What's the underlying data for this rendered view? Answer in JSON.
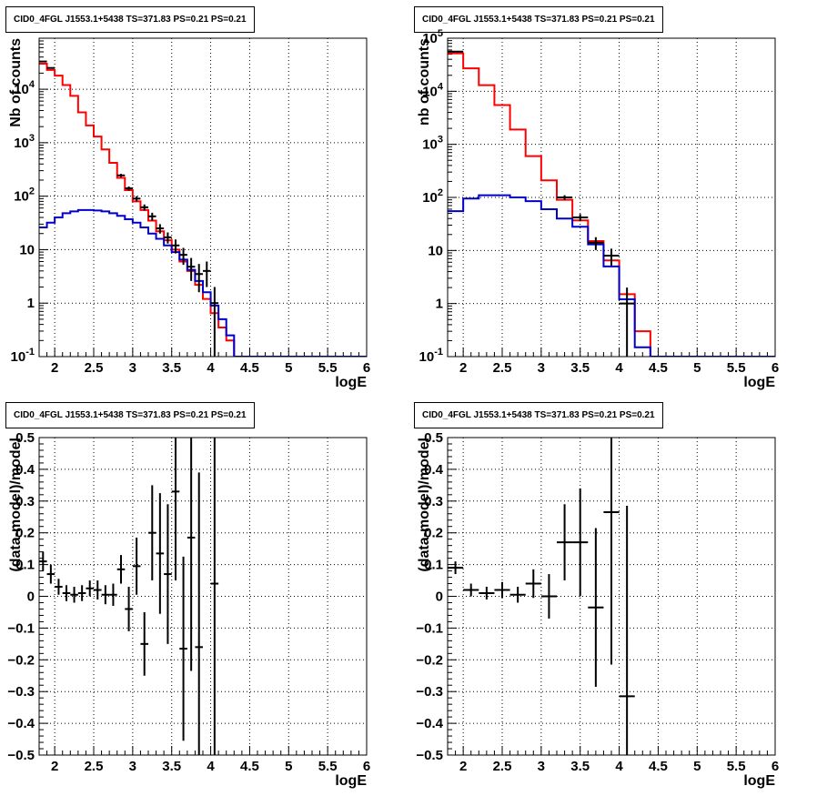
{
  "panels": [
    {
      "title": "CID0_4FGL J1553.1+5438 TS=371.83 PS=0.21 PS=0.21",
      "xlabel": "logE",
      "ylabel": "Nb of counts",
      "yscale": "log",
      "xlim": [
        1.8,
        6.0
      ],
      "ylim": [
        0.1,
        90000
      ],
      "xticks": [
        "2",
        "2.5",
        "3",
        "3.5",
        "4",
        "4.5",
        "5",
        "5.5",
        "6"
      ],
      "yticks": [
        {
          "v": 0.1,
          "label": "10^-1"
        },
        {
          "v": 1,
          "label": "1"
        },
        {
          "v": 10,
          "label": "10"
        },
        {
          "v": 100,
          "label": "10^2"
        },
        {
          "v": 1000,
          "label": "10^3"
        },
        {
          "v": 10000,
          "label": "10^4"
        }
      ]
    },
    {
      "title": "CID0_4FGL J1553.1+5438 TS=371.83 PS=0.21 PS=0.21",
      "xlabel": "logE",
      "ylabel": "nb of counts",
      "yscale": "log",
      "xlim": [
        1.8,
        6.0
      ],
      "ylim": [
        0.1,
        100000
      ],
      "xticks": [
        "2",
        "2.5",
        "3",
        "3.5",
        "4",
        "4.5",
        "5",
        "5.5",
        "6"
      ],
      "yticks": [
        {
          "v": 0.1,
          "label": "10^-1"
        },
        {
          "v": 1,
          "label": "1"
        },
        {
          "v": 10,
          "label": "10"
        },
        {
          "v": 100,
          "label": "10^2"
        },
        {
          "v": 1000,
          "label": "10^3"
        },
        {
          "v": 10000,
          "label": "10^4"
        },
        {
          "v": 100000,
          "label": "10^5"
        }
      ]
    },
    {
      "title": "CID0_4FGL J1553.1+5438 TS=371.83 PS=0.21 PS=0.21",
      "xlabel": "logE",
      "ylabel": "(data-model)/model",
      "yscale": "linear",
      "xlim": [
        1.8,
        6.0
      ],
      "ylim": [
        -0.5,
        0.5
      ],
      "xticks": [
        "2",
        "2.5",
        "3",
        "3.5",
        "4",
        "4.5",
        "5",
        "5.5",
        "6"
      ],
      "yticks": [
        {
          "v": -0.5,
          "label": "−0.5"
        },
        {
          "v": -0.4,
          "label": "−0.4"
        },
        {
          "v": -0.3,
          "label": "−0.3"
        },
        {
          "v": -0.2,
          "label": "−0.2"
        },
        {
          "v": -0.1,
          "label": "−0.1"
        },
        {
          "v": 0,
          "label": "0"
        },
        {
          "v": 0.1,
          "label": "0.1"
        },
        {
          "v": 0.2,
          "label": "0.2"
        },
        {
          "v": 0.3,
          "label": "0.3"
        },
        {
          "v": 0.4,
          "label": "0.4"
        },
        {
          "v": 0.5,
          "label": "0.5"
        }
      ]
    },
    {
      "title": "CID0_4FGL J1553.1+5438 TS=371.83 PS=0.21 PS=0.21",
      "xlabel": "logE",
      "ylabel": "(data-model)/model",
      "yscale": "linear",
      "xlim": [
        1.8,
        6.0
      ],
      "ylim": [
        -0.5,
        0.5
      ],
      "xticks": [
        "2",
        "2.5",
        "3",
        "3.5",
        "4",
        "4.5",
        "5",
        "5.5",
        "6"
      ],
      "yticks": [
        {
          "v": -0.5,
          "label": "−0.5"
        },
        {
          "v": -0.4,
          "label": "−0.4"
        },
        {
          "v": -0.3,
          "label": "−0.3"
        },
        {
          "v": -0.2,
          "label": "−0.2"
        },
        {
          "v": -0.1,
          "label": "−0.1"
        },
        {
          "v": 0,
          "label": "0"
        },
        {
          "v": 0.1,
          "label": "0.1"
        },
        {
          "v": 0.2,
          "label": "0.2"
        },
        {
          "v": 0.3,
          "label": "0.3"
        },
        {
          "v": 0.4,
          "label": "0.4"
        },
        {
          "v": 0.5,
          "label": "0.5"
        }
      ]
    }
  ],
  "chart_data": [
    {
      "type": "histogram",
      "title": "CID0_4FGL J1553.1+5438 TS=371.83 PS=0.21 PS=0.21",
      "xlabel": "logE",
      "ylabel": "Nb of counts",
      "yscale": "log",
      "xlim": [
        1.8,
        6.0
      ],
      "ylim": [
        0.1,
        90000
      ],
      "grid": true,
      "bin_edges": [
        1.8,
        1.9,
        2.0,
        2.1,
        2.2,
        2.3,
        2.4,
        2.5,
        2.6,
        2.7,
        2.8,
        2.9,
        3.0,
        3.1,
        3.2,
        3.3,
        3.4,
        3.5,
        3.6,
        3.7,
        3.8,
        3.9,
        4.0,
        4.1,
        4.2,
        4.3,
        4.4,
        6.0
      ],
      "series": [
        {
          "color": "#ff0000",
          "style": "step",
          "values": [
            30000,
            23000,
            18000,
            12000,
            7500,
            3700,
            2100,
            1300,
            750,
            420,
            220,
            130,
            80,
            55,
            35,
            22,
            15,
            10,
            6,
            4,
            2.2,
            1.2,
            0.65,
            0.35,
            0.2,
            0.1,
            0.1
          ]
        },
        {
          "color": "#0000cc",
          "style": "step",
          "values": [
            26,
            32,
            40,
            48,
            52,
            55,
            55,
            54,
            52,
            48,
            43,
            37,
            32,
            26,
            20,
            16,
            12,
            9,
            6.5,
            4.2,
            2.6,
            1.6,
            0.9,
            0.5,
            0.25,
            0.1,
            0.1
          ]
        },
        {
          "color": "#000000",
          "style": "errorbar",
          "points": [
            {
              "x": 1.85,
              "y": 33000,
              "err": 200
            },
            {
              "x": 1.95,
              "y": 25000,
              "err": 180
            },
            {
              "x": 2.85,
              "y": 245,
              "err": 16
            },
            {
              "x": 2.95,
              "y": 140,
              "err": 12
            },
            {
              "x": 3.05,
              "y": 90,
              "err": 10
            },
            {
              "x": 3.15,
              "y": 62,
              "err": 8
            },
            {
              "x": 3.25,
              "y": 42,
              "err": 7
            },
            {
              "x": 3.35,
              "y": 25,
              "err": 5
            },
            {
              "x": 3.45,
              "y": 17,
              "err": 4
            },
            {
              "x": 3.55,
              "y": 12,
              "err": 3.5
            },
            {
              "x": 3.65,
              "y": 8,
              "err": 2.8
            },
            {
              "x": 3.75,
              "y": 4.8,
              "err": 2.2
            },
            {
              "x": 3.85,
              "y": 3.5,
              "err": 1.9
            },
            {
              "x": 3.95,
              "y": 4.0,
              "err": 2.0
            },
            {
              "x": 4.05,
              "y": 1.0,
              "err": 1.0
            }
          ]
        }
      ]
    },
    {
      "type": "histogram",
      "title": "CID0_4FGL J1553.1+5438 TS=371.83 PS=0.21 PS=0.21",
      "xlabel": "logE",
      "ylabel": "nb of counts",
      "yscale": "log",
      "xlim": [
        1.8,
        6.0
      ],
      "ylim": [
        0.1,
        100000
      ],
      "grid": true,
      "bin_edges": [
        1.8,
        2.0,
        2.2,
        2.4,
        2.6,
        2.8,
        3.0,
        3.2,
        3.4,
        3.6,
        3.8,
        4.0,
        4.2,
        4.4,
        6.0
      ],
      "series": [
        {
          "color": "#ff0000",
          "style": "step",
          "values": [
            52000,
            27000,
            13000,
            5500,
            1900,
            600,
            210,
            90,
            37,
            15,
            6.5,
            1.5,
            0.3,
            0.1
          ]
        },
        {
          "color": "#0000cc",
          "style": "step",
          "values": [
            55,
            95,
            110,
            110,
            100,
            85,
            60,
            40,
            28,
            13,
            5,
            1.2,
            0.15,
            0.1
          ]
        },
        {
          "color": "#000000",
          "style": "errorbar",
          "points": [
            {
              "x": 1.9,
              "y": 56000,
              "err": 250
            },
            {
              "x": 3.3,
              "y": 100,
              "err": 10
            },
            {
              "x": 3.5,
              "y": 42,
              "err": 6.5
            },
            {
              "x": 3.7,
              "y": 14,
              "err": 3.8
            },
            {
              "x": 3.9,
              "y": 8,
              "err": 2.8
            },
            {
              "x": 4.1,
              "y": 1.0,
              "err": 1.0
            }
          ]
        }
      ]
    },
    {
      "type": "scatter",
      "title": "CID0_4FGL J1553.1+5438 TS=371.83 PS=0.21 PS=0.21",
      "xlabel": "logE",
      "ylabel": "(data-model)/model",
      "xlim": [
        1.8,
        6.0
      ],
      "ylim": [
        -0.5,
        0.5
      ],
      "grid": true,
      "xerr": 0.05,
      "points": [
        {
          "x": 1.85,
          "y": 0.11,
          "err": 0.03
        },
        {
          "x": 1.95,
          "y": 0.07,
          "err": 0.03
        },
        {
          "x": 2.05,
          "y": 0.03,
          "err": 0.025
        },
        {
          "x": 2.15,
          "y": 0.01,
          "err": 0.025
        },
        {
          "x": 2.25,
          "y": 0.005,
          "err": 0.025
        },
        {
          "x": 2.35,
          "y": 0.01,
          "err": 0.025
        },
        {
          "x": 2.45,
          "y": 0.025,
          "err": 0.025
        },
        {
          "x": 2.55,
          "y": 0.02,
          "err": 0.03
        },
        {
          "x": 2.65,
          "y": 0.005,
          "err": 0.03
        },
        {
          "x": 2.75,
          "y": 0.005,
          "err": 0.035
        },
        {
          "x": 2.85,
          "y": 0.085,
          "err": 0.045
        },
        {
          "x": 2.95,
          "y": -0.04,
          "err": 0.07
        },
        {
          "x": 3.05,
          "y": 0.095,
          "err": 0.09
        },
        {
          "x": 3.15,
          "y": -0.15,
          "err": 0.1
        },
        {
          "x": 3.25,
          "y": 0.2,
          "err": 0.15
        },
        {
          "x": 3.35,
          "y": 0.135,
          "err": 0.19
        },
        {
          "x": 3.45,
          "y": 0.07,
          "err": 0.22
        },
        {
          "x": 3.55,
          "y": 0.33,
          "err": 0.28
        },
        {
          "x": 3.65,
          "y": -0.165,
          "err": 0.29
        },
        {
          "x": 3.75,
          "y": 0.185,
          "err": 0.42
        },
        {
          "x": 3.85,
          "y": -0.16,
          "err": 0.55
        },
        {
          "x": 4.05,
          "y": 0.04,
          "err": 1.0
        }
      ]
    },
    {
      "type": "scatter",
      "title": "CID0_4FGL J1553.1+5438 TS=371.83 PS=0.21 PS=0.21",
      "xlabel": "logE",
      "ylabel": "(data-model)/model",
      "xlim": [
        1.8,
        6.0
      ],
      "ylim": [
        -0.5,
        0.5
      ],
      "grid": true,
      "xerr": 0.1,
      "points": [
        {
          "x": 1.9,
          "y": 0.09,
          "err": 0.02
        },
        {
          "x": 2.1,
          "y": 0.02,
          "err": 0.02
        },
        {
          "x": 2.3,
          "y": 0.01,
          "err": 0.02
        },
        {
          "x": 2.5,
          "y": 0.02,
          "err": 0.025
        },
        {
          "x": 2.7,
          "y": 0.005,
          "err": 0.025
        },
        {
          "x": 2.9,
          "y": 0.04,
          "err": 0.045
        },
        {
          "x": 3.1,
          "y": 0.0,
          "err": 0.07
        },
        {
          "x": 3.3,
          "y": 0.17,
          "err": 0.12
        },
        {
          "x": 3.5,
          "y": 0.17,
          "err": 0.17
        },
        {
          "x": 3.7,
          "y": -0.035,
          "err": 0.25
        },
        {
          "x": 3.9,
          "y": 0.265,
          "err": 0.48
        },
        {
          "x": 4.1,
          "y": -0.315,
          "err": 0.6
        }
      ]
    }
  ]
}
